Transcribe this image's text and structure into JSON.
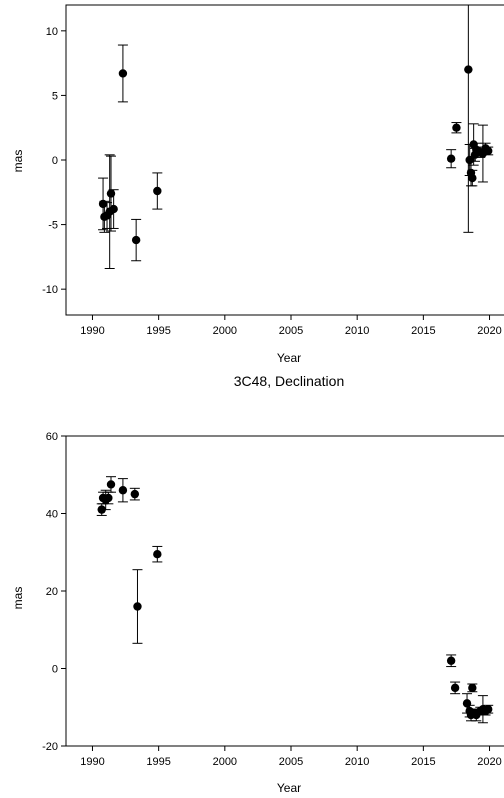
{
  "chart_data": [
    {
      "type": "scatter",
      "title": "",
      "xlabel": "Year",
      "ylabel": "mas",
      "xlim": [
        1988,
        2022
      ],
      "ylim": [
        -12,
        12
      ],
      "xticks": [
        1990,
        1995,
        2000,
        2005,
        2010,
        2015,
        2020
      ],
      "yticks": [
        -10,
        -5,
        0,
        5,
        10
      ],
      "grid": false,
      "error_bars": true,
      "points": [
        {
          "x": 1990.8,
          "y": -3.4,
          "err": 2.0
        },
        {
          "x": 1990.9,
          "y": -4.4,
          "err": 1.2
        },
        {
          "x": 1991.1,
          "y": -4.3,
          "err": 1.0
        },
        {
          "x": 1991.3,
          "y": -4.0,
          "err": 4.4
        },
        {
          "x": 1991.4,
          "y": -2.6,
          "err": 2.9
        },
        {
          "x": 1991.6,
          "y": -3.8,
          "err": 1.5
        },
        {
          "x": 1992.3,
          "y": 6.7,
          "err": 2.2
        },
        {
          "x": 1993.3,
          "y": -6.2,
          "err": 1.6
        },
        {
          "x": 1994.9,
          "y": -2.4,
          "err": 1.4
        },
        {
          "x": 2017.1,
          "y": 0.1,
          "err": 0.7
        },
        {
          "x": 2017.5,
          "y": 2.5,
          "err": 0.4
        },
        {
          "x": 2018.4,
          "y": 7.0,
          "err": 12.6
        },
        {
          "x": 2018.5,
          "y": 0.0,
          "err": 1.2
        },
        {
          "x": 2018.6,
          "y": -1.0,
          "err": 1.0
        },
        {
          "x": 2018.7,
          "y": -1.4,
          "err": 0.6
        },
        {
          "x": 2018.8,
          "y": 1.2,
          "err": 1.6
        },
        {
          "x": 2018.9,
          "y": 0.4,
          "err": 0.5
        },
        {
          "x": 2019.0,
          "y": 0.8,
          "err": 0.5
        },
        {
          "x": 2019.3,
          "y": 0.6,
          "err": 0.4
        },
        {
          "x": 2019.5,
          "y": 0.5,
          "err": 2.2
        },
        {
          "x": 2019.7,
          "y": 0.9,
          "err": 0.4
        },
        {
          "x": 2019.9,
          "y": 0.7,
          "err": 0.3
        }
      ]
    },
    {
      "type": "scatter",
      "title": "3C48, Declination",
      "xlabel": "Year",
      "ylabel": "mas",
      "xlim": [
        1988,
        2022
      ],
      "ylim": [
        -20,
        60
      ],
      "xticks": [
        1990,
        1995,
        2000,
        2005,
        2010,
        2015,
        2020
      ],
      "yticks": [
        -20,
        0,
        20,
        40,
        60
      ],
      "grid": false,
      "error_bars": true,
      "points": [
        {
          "x": 1990.7,
          "y": 41.0,
          "err": 1.5
        },
        {
          "x": 1990.8,
          "y": 44.0,
          "err": 1.5
        },
        {
          "x": 1991.0,
          "y": 43.5,
          "err": 2.5
        },
        {
          "x": 1991.2,
          "y": 44.0,
          "err": 1.5
        },
        {
          "x": 1991.4,
          "y": 47.5,
          "err": 2.0
        },
        {
          "x": 1992.3,
          "y": 46.0,
          "err": 3.0
        },
        {
          "x": 1993.2,
          "y": 45.0,
          "err": 1.5
        },
        {
          "x": 1993.4,
          "y": 16.0,
          "err": 9.5
        },
        {
          "x": 1994.9,
          "y": 29.5,
          "err": 2.0
        },
        {
          "x": 2017.1,
          "y": 2.0,
          "err": 1.5
        },
        {
          "x": 2017.4,
          "y": -5.0,
          "err": 1.5
        },
        {
          "x": 2018.3,
          "y": -9.0,
          "err": 2.5
        },
        {
          "x": 2018.5,
          "y": -11.0,
          "err": 1.5
        },
        {
          "x": 2018.6,
          "y": -12.0,
          "err": 1.5
        },
        {
          "x": 2018.7,
          "y": -5.0,
          "err": 1.0
        },
        {
          "x": 2018.8,
          "y": -11.5,
          "err": 1.0
        },
        {
          "x": 2019.0,
          "y": -12.0,
          "err": 1.5
        },
        {
          "x": 2019.3,
          "y": -11.0,
          "err": 1.0
        },
        {
          "x": 2019.5,
          "y": -10.5,
          "err": 3.5
        },
        {
          "x": 2019.7,
          "y": -11.0,
          "err": 1.0
        },
        {
          "x": 2019.9,
          "y": -10.5,
          "err": 1.0
        }
      ]
    }
  ]
}
